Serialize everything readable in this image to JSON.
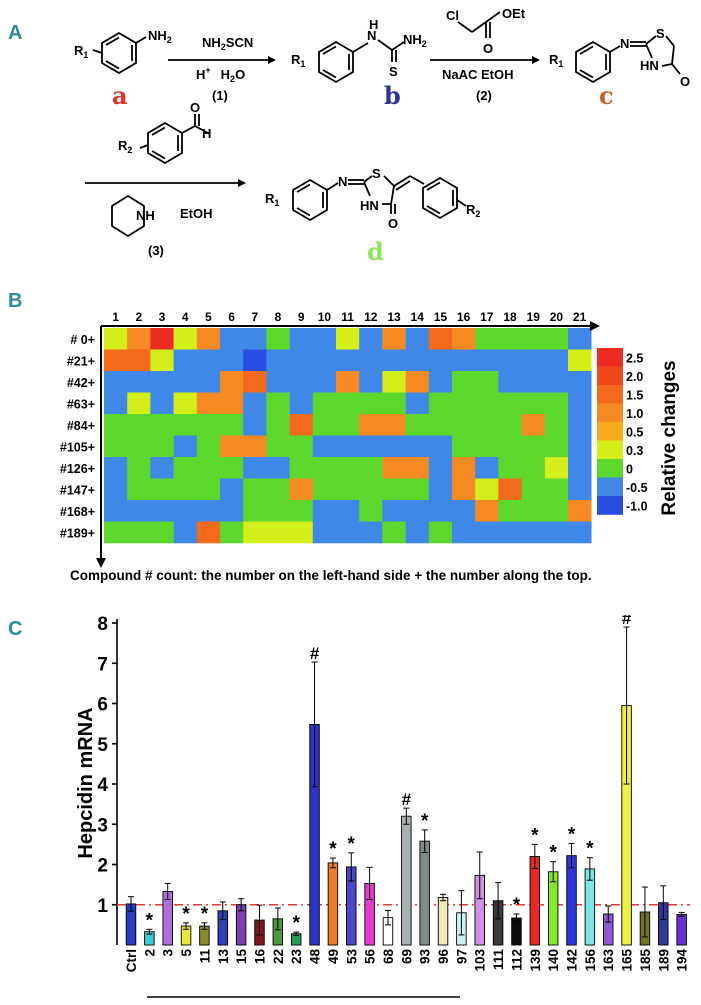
{
  "panel_a": {
    "letter": "A",
    "compound_labels": {
      "a": "a",
      "b": "b",
      "c": "c",
      "d": "d"
    },
    "substituents": {
      "r1": "R",
      "r1_sub": "1",
      "r2": "R",
      "r2_sub": "2"
    },
    "atoms": {
      "nh2": "NH",
      "nh2_sub": "2",
      "h": "H",
      "n": "N",
      "s": "S",
      "hn": "HN",
      "o": "O",
      "cl": "Cl",
      "oet": "OEt",
      "nh": "NH"
    },
    "step1": {
      "reagent": "NH",
      "reagent_sub": "2",
      "reagent_rest": "SCN",
      "cond": "H",
      "cond_sup": "+",
      "cond2": "H",
      "cond2_sub": "2",
      "cond2_rest": "O",
      "num": "(1)"
    },
    "step2": {
      "cond": "NaAC   EtOH",
      "num": "(2)"
    },
    "step3": {
      "cond": "EtOH",
      "num": "(3)"
    },
    "colors": {
      "a": "#e8302c",
      "b": "#2c3590",
      "c": "#c8622b",
      "d": "#8fe05a"
    }
  },
  "panel_b": {
    "letter": "B",
    "caption": "Compound # count: the number on the left-hand side + the number along the top.",
    "legend_title": "Relative changes"
  },
  "panel_c": {
    "letter": "C",
    "ylabel": "Hepcidin mRNA"
  },
  "chart_data": [
    {
      "type": "heatmap",
      "columns": [
        "1",
        "2",
        "3",
        "4",
        "5",
        "6",
        "7",
        "8",
        "9",
        "10",
        "11",
        "12",
        "13",
        "14",
        "15",
        "16",
        "17",
        "18",
        "19",
        "20",
        "21"
      ],
      "rows": [
        "# 0+",
        "#21+",
        "#42+",
        "#63+",
        "#84+",
        "#105+",
        "#126+",
        "#147+",
        "#168+",
        "#189+"
      ],
      "values": [
        [
          0.3,
          1.0,
          2.5,
          0.3,
          1.0,
          -0.5,
          -0.5,
          0,
          -0.5,
          -0.5,
          0.3,
          -0.5,
          1.0,
          -0.5,
          1.5,
          1.0,
          0,
          0,
          0,
          0,
          -0.5
        ],
        [
          1.5,
          1.5,
          0.3,
          -0.5,
          -0.5,
          -0.5,
          -1.0,
          -0.5,
          -0.5,
          -0.5,
          -0.5,
          -0.5,
          -0.5,
          -0.5,
          -0.5,
          -0.5,
          -0.5,
          -0.5,
          -0.5,
          -0.5,
          0.3
        ],
        [
          -0.5,
          -0.5,
          -0.5,
          -0.5,
          -0.5,
          1.0,
          1.5,
          -0.5,
          -0.5,
          -0.5,
          1.0,
          -0.5,
          0.3,
          1.0,
          -0.5,
          0,
          0,
          -0.5,
          -0.5,
          -0.5,
          -0.5
        ],
        [
          -0.5,
          0.3,
          -0.5,
          0.3,
          1.0,
          1.0,
          -0.5,
          0,
          -0.5,
          0,
          0,
          0,
          0,
          -0.5,
          0,
          0,
          0,
          0,
          0,
          0,
          -0.5
        ],
        [
          0,
          0,
          0,
          0,
          0,
          0,
          -0.5,
          0,
          1.5,
          0,
          0,
          1.0,
          1.0,
          0,
          0,
          0,
          0,
          0,
          1.0,
          0,
          -0.5
        ],
        [
          0,
          0,
          0,
          -0.5,
          0,
          1.0,
          1.0,
          0,
          0,
          -0.5,
          -0.5,
          -0.5,
          -0.5,
          -0.5,
          -0.5,
          0,
          0,
          0,
          0,
          0,
          -0.5
        ],
        [
          -0.5,
          0,
          -0.5,
          0,
          0,
          0,
          -0.5,
          -0.5,
          0,
          0,
          0,
          0,
          1.0,
          1.0,
          -0.5,
          1.0,
          -0.5,
          0,
          0,
          0.3,
          -0.5
        ],
        [
          -0.5,
          0,
          0,
          0,
          0,
          -0.5,
          0,
          0,
          1.0,
          0,
          0,
          0,
          0,
          0,
          -0.5,
          1.0,
          0.3,
          1.5,
          0,
          0,
          -0.5
        ],
        [
          -0.5,
          -0.5,
          -0.5,
          -0.5,
          -0.5,
          -0.5,
          0,
          0,
          0,
          -0.5,
          -0.5,
          0,
          -0.5,
          -0.5,
          -0.5,
          -0.5,
          1.0,
          0,
          0,
          0,
          1.0
        ],
        [
          0,
          0,
          0,
          -0.5,
          1.5,
          0,
          0.3,
          0.3,
          0.3,
          -0.5,
          -0.5,
          -0.5,
          0,
          -0.5,
          0,
          -0.5,
          -0.5,
          -0.5,
          -0.5,
          -0.5,
          -0.5
        ]
      ],
      "scale": [
        {
          "label": "2.5",
          "value": 2.5,
          "color": "#ee2b23"
        },
        {
          "label": "2.0",
          "value": 2.0,
          "color": "#f04a1c"
        },
        {
          "label": "1.5",
          "value": 1.5,
          "color": "#f36a1c"
        },
        {
          "label": "1.0",
          "value": 1.0,
          "color": "#f58a22"
        },
        {
          "label": "0.5",
          "value": 0.5,
          "color": "#f8aa1f"
        },
        {
          "label": "0.3",
          "value": 0.3,
          "color": "#d3ee1a"
        },
        {
          "label": "0",
          "value": 0,
          "color": "#5cd82d"
        },
        {
          "label": "-0.5",
          "value": -0.5,
          "color": "#3f88e8"
        },
        {
          "label": "-1.0",
          "value": -1.0,
          "color": "#2a4ee2"
        }
      ]
    },
    {
      "type": "bar",
      "categories": [
        "Ctrl",
        "2",
        "3",
        "5",
        "11",
        "13",
        "15",
        "16",
        "22",
        "23",
        "48",
        "49",
        "53",
        "56",
        "68",
        "69",
        "93",
        "96",
        "97",
        "103",
        "111",
        "112",
        "139",
        "140",
        "142",
        "156",
        "163",
        "165",
        "185",
        "189",
        "194"
      ],
      "values": [
        1.02,
        0.33,
        1.33,
        0.47,
        0.47,
        0.85,
        1.0,
        0.62,
        0.65,
        0.28,
        5.48,
        2.04,
        1.94,
        1.53,
        0.68,
        3.2,
        2.58,
        1.18,
        0.8,
        1.73,
        1.1,
        0.67,
        2.2,
        1.82,
        2.22,
        1.89,
        0.77,
        5.95,
        0.82,
        1.05,
        0.76
      ],
      "errors": [
        0.18,
        0.06,
        0.2,
        0.08,
        0.08,
        0.22,
        0.15,
        0.37,
        0.27,
        0.04,
        1.55,
        0.12,
        0.35,
        0.4,
        0.18,
        0.2,
        0.28,
        0.08,
        0.55,
        0.58,
        0.45,
        0.1,
        0.3,
        0.25,
        0.3,
        0.28,
        0.2,
        1.95,
        0.62,
        0.42,
        0.05
      ],
      "colors": [
        "#2b3cc7",
        "#3ecbd3",
        "#b06ed8",
        "#e8e83a",
        "#8a8a30",
        "#343fb5",
        "#7a40b0",
        "#7c1a1a",
        "#4d9838",
        "#2f9a5a",
        "#2f34c8",
        "#ef7e2a",
        "#4b49c8",
        "#e43bd0",
        "#ffffff",
        "#a7b1b1",
        "#7f8a8a",
        "#f1e8bb",
        "#c8f4ef",
        "#cd92e3",
        "#3a3a3a",
        "#0b0b0b",
        "#e52a25",
        "#86e82b",
        "#2f36d8",
        "#7ee6e4",
        "#8c5bd4",
        "#eef046",
        "#737327",
        "#313a9a",
        "#6b2fd5"
      ],
      "markers": [
        "",
        "*",
        "",
        "*",
        "*",
        "",
        "",
        "",
        "",
        "*",
        "#",
        "*",
        "*",
        "",
        "",
        "#",
        "*",
        "",
        "",
        "",
        "",
        "*",
        "*",
        "*",
        "*",
        "*",
        "",
        "#",
        "",
        "",
        ""
      ],
      "ylim": [
        0,
        8
      ],
      "yticks": [
        1,
        2,
        3,
        4,
        5,
        6,
        7,
        8
      ],
      "reference_line": 1
    }
  ]
}
